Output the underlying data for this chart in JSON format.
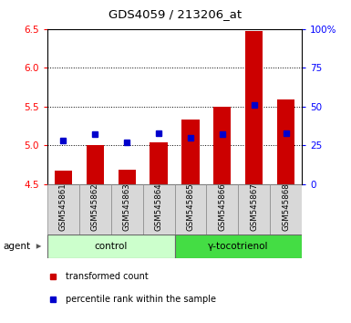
{
  "title": "GDS4059 / 213206_at",
  "samples": [
    "GSM545861",
    "GSM545862",
    "GSM545863",
    "GSM545864",
    "GSM545865",
    "GSM545866",
    "GSM545867",
    "GSM545868"
  ],
  "bar_values": [
    4.67,
    5.0,
    4.69,
    5.04,
    5.33,
    5.5,
    6.47,
    5.59
  ],
  "bar_base": 4.5,
  "percentile_values": [
    28,
    32,
    27,
    33,
    30,
    32,
    51,
    33
  ],
  "percentile_right_axis": [
    0,
    25,
    50,
    75,
    100
  ],
  "left_yticks": [
    4.5,
    5.0,
    5.5,
    6.0,
    6.5
  ],
  "ylim": [
    4.5,
    6.5
  ],
  "right_ylim": [
    0,
    100
  ],
  "bar_color": "#cc0000",
  "percentile_color": "#0000cc",
  "groups": [
    {
      "label": "control",
      "indices": [
        0,
        1,
        2,
        3
      ],
      "bg_color": "#ccffcc"
    },
    {
      "label": "γ-tocotrienol",
      "indices": [
        4,
        5,
        6,
        7
      ],
      "bg_color": "#44dd44"
    }
  ],
  "agent_label": "agent",
  "legend_items": [
    {
      "label": "transformed count",
      "color": "#cc0000"
    },
    {
      "label": "percentile rank within the sample",
      "color": "#0000cc"
    }
  ],
  "grid_yticks": [
    5.0,
    5.5,
    6.0
  ],
  "sample_bg_color": "#d8d8d8",
  "plot_bg": "#ffffff",
  "fig_bg": "#ffffff"
}
